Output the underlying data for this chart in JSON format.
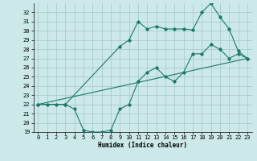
{
  "background_color": "#cce8e8",
  "grid_color": "#aacccc",
  "line_color": "#1a7a6a",
  "xlabel": "Humidex (Indice chaleur)",
  "ylim": [
    19,
    33
  ],
  "xlim": [
    -0.5,
    23.5
  ],
  "yticks": [
    19,
    20,
    21,
    22,
    23,
    24,
    25,
    26,
    27,
    28,
    29,
    30,
    31,
    32
  ],
  "xticks": [
    0,
    1,
    2,
    3,
    4,
    5,
    6,
    7,
    8,
    9,
    10,
    11,
    12,
    13,
    14,
    15,
    16,
    17,
    18,
    19,
    20,
    21,
    22,
    23
  ],
  "line1_x": [
    0,
    23
  ],
  "line1_y": [
    22.0,
    27.0
  ],
  "line2_x": [
    0,
    3,
    9,
    10,
    11,
    12,
    13,
    14,
    15,
    16,
    17,
    18,
    19,
    20,
    21,
    22,
    23
  ],
  "line2_y": [
    22.0,
    22.0,
    28.3,
    29.0,
    31.0,
    30.2,
    30.5,
    30.2,
    30.2,
    30.2,
    30.1,
    32.0,
    33.0,
    31.5,
    30.2,
    27.8,
    27.0
  ],
  "line3_x": [
    0,
    1,
    2,
    3,
    4,
    5,
    6,
    7,
    8,
    9,
    10,
    11,
    12,
    13,
    14,
    15,
    16,
    17,
    18,
    19,
    20,
    21,
    22,
    23
  ],
  "line3_y": [
    22.0,
    22.0,
    22.0,
    22.0,
    21.5,
    19.2,
    19.0,
    19.0,
    19.2,
    21.5,
    22.0,
    24.5,
    25.5,
    26.0,
    25.0,
    24.5,
    25.5,
    27.5,
    27.5,
    28.5,
    28.0,
    27.0,
    27.5,
    27.0
  ],
  "xlabel_fontsize": 5.5,
  "tick_fontsize": 5.0,
  "linewidth": 0.8,
  "markersize": 1.8
}
